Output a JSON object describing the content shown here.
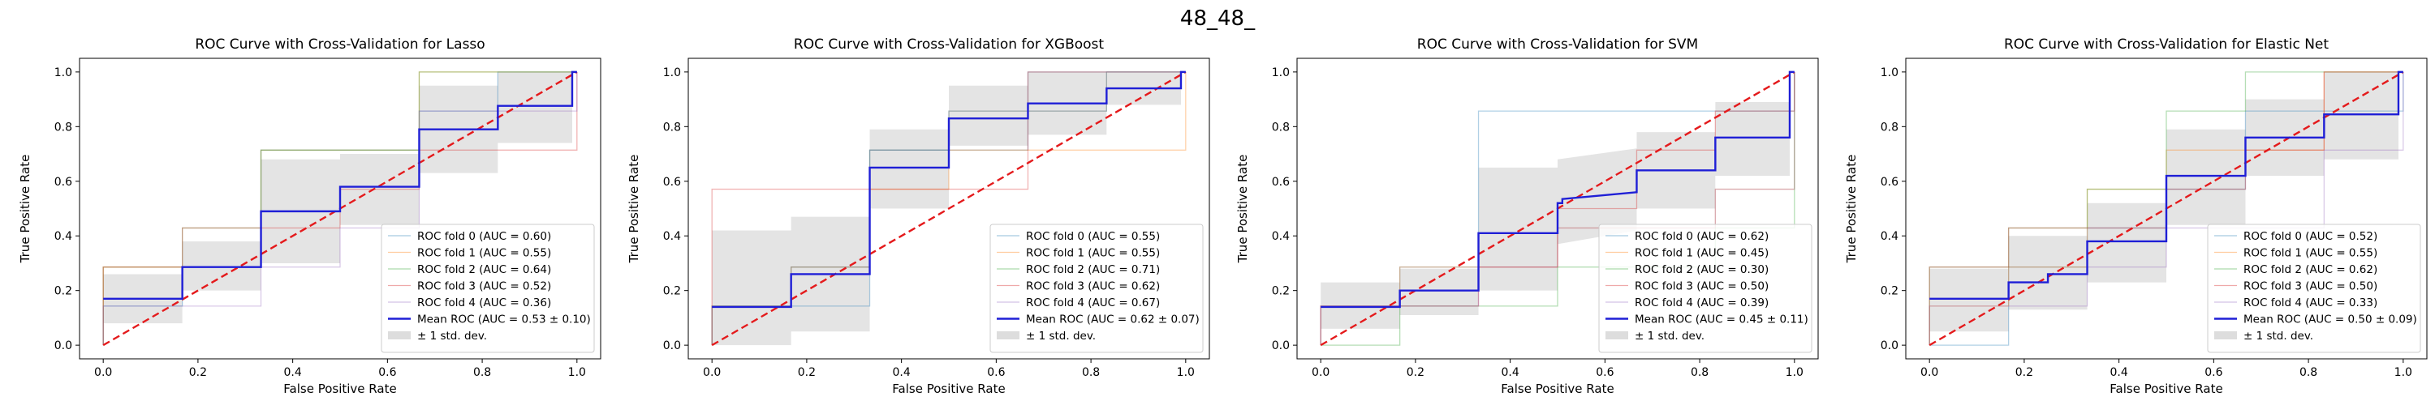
{
  "figure": {
    "title": "48_48_"
  },
  "colors": {
    "fold_colors": [
      "#1f77b4",
      "#ff7f0e",
      "#2ca02c",
      "#d62728",
      "#9467bd"
    ],
    "mean": "#1f1fd6",
    "chance": "#e41a1c",
    "band": "#9e9e9e"
  },
  "chart_data": [
    {
      "type": "line",
      "title": "ROC Curve with Cross-Validation for Lasso",
      "xlabel": "False Positive Rate",
      "ylabel": "True Positive Rate",
      "xlim": [
        -0.05,
        1.05
      ],
      "ylim": [
        -0.05,
        1.05
      ],
      "xticks": [
        "0.0",
        "0.2",
        "0.4",
        "0.6",
        "0.8",
        "1.0"
      ],
      "yticks": [
        "0.0",
        "0.2",
        "0.4",
        "0.6",
        "0.8",
        "1.0"
      ],
      "legend_position": "lower-right",
      "series": [
        {
          "name": "ROC fold 0 (AUC = 0.60)",
          "x": [
            0,
            0,
            0.167,
            0.167,
            0.333,
            0.333,
            0.5,
            0.5,
            0.667,
            0.667,
            0.833,
            0.833,
            1
          ],
          "y": [
            0,
            0.143,
            0.143,
            0.286,
            0.286,
            0.714,
            0.714,
            0.714,
            0.714,
            0.857,
            0.857,
            1,
            1
          ]
        },
        {
          "name": "ROC fold 1 (AUC = 0.55)",
          "x": [
            0,
            0,
            0.167,
            0.167,
            0.333,
            0.333,
            0.667,
            0.667,
            1,
            1
          ],
          "y": [
            0,
            0.286,
            0.286,
            0.286,
            0.286,
            0.714,
            0.714,
            1,
            1,
            1
          ]
        },
        {
          "name": "ROC fold 2 (AUC = 0.64)",
          "x": [
            0,
            0,
            0.167,
            0.167,
            0.333,
            0.333,
            0.5,
            0.5,
            0.667,
            0.667,
            1
          ],
          "y": [
            0,
            0.286,
            0.286,
            0.429,
            0.429,
            0.714,
            0.714,
            0.714,
            0.714,
            1,
            1
          ]
        },
        {
          "name": "ROC fold 3 (AUC = 0.52)",
          "x": [
            0,
            0,
            0.167,
            0.167,
            0.333,
            0.333,
            0.5,
            0.5,
            0.667,
            0.667,
            1,
            1
          ],
          "y": [
            0,
            0.286,
            0.286,
            0.429,
            0.429,
            0.429,
            0.429,
            0.571,
            0.571,
            0.714,
            0.714,
            1
          ]
        },
        {
          "name": "ROC fold 4 (AUC = 0.36)",
          "x": [
            0,
            0,
            0.167,
            0.167,
            0.333,
            0.333,
            0.5,
            0.5,
            0.667,
            0.667,
            1,
            1
          ],
          "y": [
            0,
            0.143,
            0.143,
            0.143,
            0.143,
            0.286,
            0.286,
            0.429,
            0.429,
            0.857,
            0.857,
            1
          ]
        }
      ],
      "mean": {
        "name": "Mean ROC (AUC = 0.53 ± 0.10)",
        "x": [
          0,
          0.167,
          0.167,
          0.333,
          0.333,
          0.5,
          0.5,
          0.667,
          0.667,
          0.833,
          0.833,
          0.99,
          0.99,
          1
        ],
        "y": [
          0.17,
          0.17,
          0.286,
          0.286,
          0.49,
          0.49,
          0.58,
          0.58,
          0.79,
          0.79,
          0.876,
          0.876,
          1,
          1
        ]
      },
      "band": {
        "name": "± 1 std. dev.",
        "x": [
          0,
          0.167,
          0.167,
          0.333,
          0.333,
          0.5,
          0.5,
          0.667,
          0.667,
          0.833,
          0.833,
          0.99,
          0.99,
          1
        ],
        "upper": [
          0.26,
          0.26,
          0.38,
          0.38,
          0.68,
          0.68,
          0.7,
          0.7,
          0.95,
          0.95,
          1,
          1,
          1,
          1
        ],
        "lower": [
          0.08,
          0.08,
          0.2,
          0.2,
          0.3,
          0.3,
          0.44,
          0.44,
          0.63,
          0.63,
          0.74,
          0.74,
          1,
          1
        ]
      },
      "chance": {
        "x": [
          0,
          1
        ],
        "y": [
          0,
          1
        ]
      }
    },
    {
      "type": "line",
      "title": "ROC Curve with Cross-Validation for XGBoost",
      "xlabel": "False Positive Rate",
      "ylabel": "True Positive Rate",
      "xlim": [
        -0.05,
        1.05
      ],
      "ylim": [
        -0.05,
        1.05
      ],
      "xticks": [
        "0.0",
        "0.2",
        "0.4",
        "0.6",
        "0.8",
        "1.0"
      ],
      "yticks": [
        "0.0",
        "0.2",
        "0.4",
        "0.6",
        "0.8",
        "1.0"
      ],
      "legend_position": "lower-right",
      "series": [
        {
          "name": "ROC fold 0 (AUC = 0.55)",
          "x": [
            0,
            0,
            0.333,
            0.333,
            0.667,
            0.667,
            1
          ],
          "y": [
            0,
            0.143,
            0.143,
            0.714,
            0.714,
            1,
            1
          ]
        },
        {
          "name": "ROC fold 1 (AUC = 0.55)",
          "x": [
            0,
            0,
            0.167,
            0.167,
            0.333,
            0.333,
            0.5,
            0.5,
            1,
            1
          ],
          "y": [
            0,
            0.143,
            0.143,
            0.286,
            0.286,
            0.571,
            0.571,
            0.714,
            0.714,
            1
          ]
        },
        {
          "name": "ROC fold 2 (AUC = 0.71)",
          "x": [
            0,
            0,
            0.167,
            0.167,
            0.333,
            0.333,
            0.5,
            0.5,
            0.833,
            0.833,
            1
          ],
          "y": [
            0,
            0.143,
            0.143,
            0.286,
            0.286,
            0.714,
            0.714,
            0.857,
            0.857,
            1,
            1
          ]
        },
        {
          "name": "ROC fold 3 (AUC = 0.62)",
          "x": [
            0,
            0,
            0.333,
            0.333,
            0.667,
            0.667,
            1
          ],
          "y": [
            0,
            0.571,
            0.571,
            0.571,
            0.571,
            1,
            1
          ]
        },
        {
          "name": "ROC fold 4 (AUC = 0.67)",
          "x": [
            0,
            0,
            0.167,
            0.167,
            0.333,
            0.333,
            0.5,
            0.5,
            0.833,
            0.833,
            1
          ],
          "y": [
            0,
            0.143,
            0.143,
            0.286,
            0.286,
            0.714,
            0.714,
            0.857,
            0.857,
            1,
            1
          ]
        }
      ],
      "mean": {
        "name": "Mean ROC (AUC = 0.62 ± 0.07)",
        "x": [
          0,
          0.167,
          0.167,
          0.333,
          0.333,
          0.5,
          0.5,
          0.667,
          0.667,
          0.833,
          0.833,
          0.99,
          0.99,
          1
        ],
        "y": [
          0.14,
          0.14,
          0.26,
          0.26,
          0.65,
          0.65,
          0.83,
          0.83,
          0.885,
          0.885,
          0.94,
          0.94,
          1,
          1
        ]
      },
      "band": {
        "name": "± 1 std. dev.",
        "x": [
          0,
          0.167,
          0.167,
          0.333,
          0.333,
          0.5,
          0.5,
          0.667,
          0.667,
          0.833,
          0.833,
          0.99,
          0.99,
          1
        ],
        "upper": [
          0.42,
          0.42,
          0.47,
          0.47,
          0.79,
          0.79,
          0.95,
          0.95,
          1,
          1,
          1,
          1,
          1,
          1
        ],
        "lower": [
          0.0,
          0.0,
          0.05,
          0.05,
          0.5,
          0.5,
          0.73,
          0.73,
          0.77,
          0.77,
          0.88,
          0.88,
          1,
          1
        ]
      },
      "chance": {
        "x": [
          0,
          1
        ],
        "y": [
          0,
          1
        ]
      }
    },
    {
      "type": "line",
      "title": "ROC Curve with Cross-Validation for SVM",
      "xlabel": "False Positive Rate",
      "ylabel": "True Positive Rate",
      "xlim": [
        -0.05,
        1.05
      ],
      "ylim": [
        -0.05,
        1.05
      ],
      "xticks": [
        "0.0",
        "0.2",
        "0.4",
        "0.6",
        "0.8",
        "1.0"
      ],
      "yticks": [
        "0.0",
        "0.2",
        "0.4",
        "0.6",
        "0.8",
        "1.0"
      ],
      "legend_position": "lower-right",
      "series": [
        {
          "name": "ROC fold 0 (AUC = 0.62)",
          "x": [
            0,
            0,
            0.167,
            0.167,
            0.333,
            0.333,
            0.667,
            0.667,
            1,
            1
          ],
          "y": [
            0,
            0.143,
            0.143,
            0.286,
            0.286,
            0.857,
            0.857,
            0.857,
            0.857,
            1
          ]
        },
        {
          "name": "ROC fold 1 (AUC = 0.45)",
          "x": [
            0,
            0,
            0.167,
            0.167,
            0.5,
            0.5,
            0.833,
            0.833,
            1,
            1
          ],
          "y": [
            0,
            0.143,
            0.143,
            0.286,
            0.286,
            0.429,
            0.429,
            0.571,
            0.571,
            1
          ]
        },
        {
          "name": "ROC fold 2 (AUC = 0.30)",
          "x": [
            0,
            0,
            0.167,
            0.167,
            0.5,
            0.5,
            0.833,
            0.833,
            1,
            1
          ],
          "y": [
            0,
            0.0,
            0.0,
            0.143,
            0.143,
            0.286,
            0.286,
            0.429,
            0.429,
            1
          ]
        },
        {
          "name": "ROC fold 3 (AUC = 0.50)",
          "x": [
            0,
            0,
            0.333,
            0.333,
            0.5,
            0.5,
            0.667,
            0.667,
            0.833,
            0.833,
            1,
            1
          ],
          "y": [
            0,
            0.143,
            0.143,
            0.286,
            0.286,
            0.5,
            0.5,
            0.714,
            0.714,
            0.857,
            0.857,
            1
          ]
        },
        {
          "name": "ROC fold 4 (AUC = 0.39)",
          "x": [
            0,
            0,
            0.333,
            0.333,
            0.5,
            0.5,
            0.833,
            0.833,
            1,
            1
          ],
          "y": [
            0,
            0.143,
            0.143,
            0.286,
            0.286,
            0.429,
            0.429,
            0.571,
            0.571,
            1
          ]
        }
      ],
      "mean": {
        "name": "Mean ROC (AUC = 0.45 ± 0.11)",
        "x": [
          0,
          0.167,
          0.167,
          0.333,
          0.333,
          0.5,
          0.5,
          0.51,
          0.51,
          0.667,
          0.667,
          0.833,
          0.833,
          0.99,
          0.99,
          1
        ],
        "y": [
          0.14,
          0.14,
          0.2,
          0.2,
          0.41,
          0.41,
          0.52,
          0.52,
          0.535,
          0.56,
          0.64,
          0.64,
          0.76,
          0.76,
          1,
          1
        ]
      },
      "band": {
        "name": "± 1 std. dev.",
        "x": [
          0,
          0.167,
          0.167,
          0.333,
          0.333,
          0.5,
          0.5,
          0.667,
          0.667,
          0.833,
          0.833,
          0.99,
          0.99,
          1
        ],
        "upper": [
          0.23,
          0.23,
          0.28,
          0.28,
          0.65,
          0.65,
          0.68,
          0.72,
          0.78,
          0.78,
          0.89,
          0.89,
          1,
          1
        ],
        "lower": [
          0.06,
          0.06,
          0.11,
          0.11,
          0.2,
          0.2,
          0.37,
          0.42,
          0.5,
          0.5,
          0.62,
          0.62,
          1,
          1
        ]
      },
      "chance": {
        "x": [
          0,
          1
        ],
        "y": [
          0,
          1
        ]
      }
    },
    {
      "type": "line",
      "title": "ROC Curve with Cross-Validation for Elastic Net",
      "xlabel": "False Positive Rate",
      "ylabel": "True Positive Rate",
      "xlim": [
        -0.05,
        1.05
      ],
      "ylim": [
        -0.05,
        1.05
      ],
      "xticks": [
        "0.0",
        "0.2",
        "0.4",
        "0.6",
        "0.8",
        "1.0"
      ],
      "yticks": [
        "0.0",
        "0.2",
        "0.4",
        "0.6",
        "0.8",
        "1.0"
      ],
      "legend_position": "lower-right",
      "series": [
        {
          "name": "ROC fold 0 (AUC = 0.52)",
          "x": [
            0,
            0,
            0.167,
            0.167,
            0.333,
            0.333,
            0.5,
            0.5,
            0.667,
            0.667,
            1,
            1
          ],
          "y": [
            0,
            0.0,
            0.0,
            0.286,
            0.286,
            0.429,
            0.429,
            0.571,
            0.571,
            0.857,
            0.857,
            1
          ]
        },
        {
          "name": "ROC fold 1 (AUC = 0.55)",
          "x": [
            0,
            0,
            0.167,
            0.167,
            0.333,
            0.333,
            0.5,
            0.5,
            0.833,
            0.833,
            1
          ],
          "y": [
            0,
            0.143,
            0.143,
            0.286,
            0.286,
            0.571,
            0.571,
            0.714,
            0.714,
            1,
            1
          ]
        },
        {
          "name": "ROC fold 2 (AUC = 0.62)",
          "x": [
            0,
            0,
            0.167,
            0.167,
            0.333,
            0.333,
            0.5,
            0.5,
            0.667,
            0.667,
            1
          ],
          "y": [
            0,
            0.286,
            0.286,
            0.429,
            0.429,
            0.571,
            0.571,
            0.857,
            0.857,
            1,
            1
          ]
        },
        {
          "name": "ROC fold 3 (AUC = 0.50)",
          "x": [
            0,
            0,
            0.167,
            0.167,
            0.5,
            0.5,
            0.667,
            0.667,
            0.833,
            0.833,
            1
          ],
          "y": [
            0,
            0.286,
            0.286,
            0.429,
            0.429,
            0.571,
            0.571,
            0.714,
            0.714,
            1,
            1
          ]
        },
        {
          "name": "ROC fold 4 (AUC = 0.33)",
          "x": [
            0,
            0,
            0.333,
            0.333,
            0.5,
            0.5,
            0.833,
            0.833,
            1,
            1
          ],
          "y": [
            0,
            0.143,
            0.143,
            0.286,
            0.286,
            0.429,
            0.429,
            0.714,
            0.714,
            1
          ]
        }
      ],
      "mean": {
        "name": "Mean ROC (AUC = 0.50 ± 0.09)",
        "x": [
          0,
          0.167,
          0.167,
          0.25,
          0.25,
          0.333,
          0.333,
          0.5,
          0.5,
          0.667,
          0.667,
          0.833,
          0.833,
          0.99,
          0.99,
          1
        ],
        "y": [
          0.17,
          0.17,
          0.23,
          0.23,
          0.26,
          0.26,
          0.38,
          0.38,
          0.62,
          0.62,
          0.76,
          0.76,
          0.845,
          0.845,
          1,
          1
        ]
      },
      "band": {
        "name": "± 1 std. dev.",
        "x": [
          0,
          0.167,
          0.167,
          0.333,
          0.333,
          0.5,
          0.5,
          0.667,
          0.667,
          0.833,
          0.833,
          0.99,
          0.99,
          1
        ],
        "upper": [
          0.28,
          0.28,
          0.4,
          0.4,
          0.52,
          0.52,
          0.79,
          0.79,
          0.9,
          0.9,
          1,
          1,
          1,
          1
        ],
        "lower": [
          0.05,
          0.05,
          0.13,
          0.13,
          0.23,
          0.23,
          0.44,
          0.44,
          0.62,
          0.62,
          0.68,
          0.68,
          1,
          1
        ]
      },
      "chance": {
        "x": [
          0,
          1
        ],
        "y": [
          0,
          1
        ]
      }
    }
  ]
}
